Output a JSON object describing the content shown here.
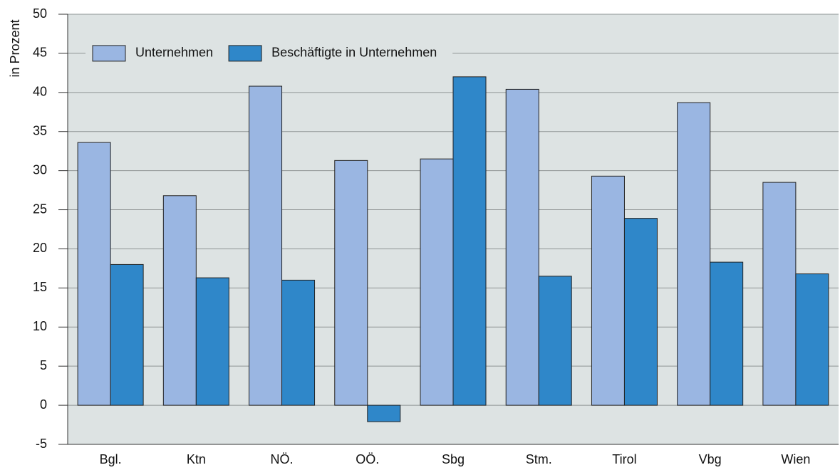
{
  "chart_data": {
    "type": "bar",
    "y_label": "in Prozent",
    "categories": [
      "Bgl.",
      "Ktn",
      "NÖ.",
      "OÖ.",
      "Sbg",
      "Stm.",
      "Tirol",
      "Vbg",
      "Wien"
    ],
    "series": [
      {
        "name": "Unternehmen",
        "color": "#9ab6e2",
        "values": [
          33.6,
          26.8,
          40.8,
          31.3,
          31.5,
          40.4,
          29.3,
          38.7,
          28.5
        ]
      },
      {
        "name": "Beschäftigte in Unternehmen",
        "color": "#2f87c9",
        "values": [
          18.0,
          16.3,
          16.0,
          -2.1,
          42.0,
          16.5,
          23.9,
          18.3,
          16.8
        ]
      }
    ],
    "ylim": [
      -5,
      50
    ],
    "yticks": [
      -5,
      0,
      5,
      10,
      15,
      20,
      25,
      30,
      35,
      40,
      45,
      50
    ],
    "grid": true,
    "legend": "top-left"
  }
}
